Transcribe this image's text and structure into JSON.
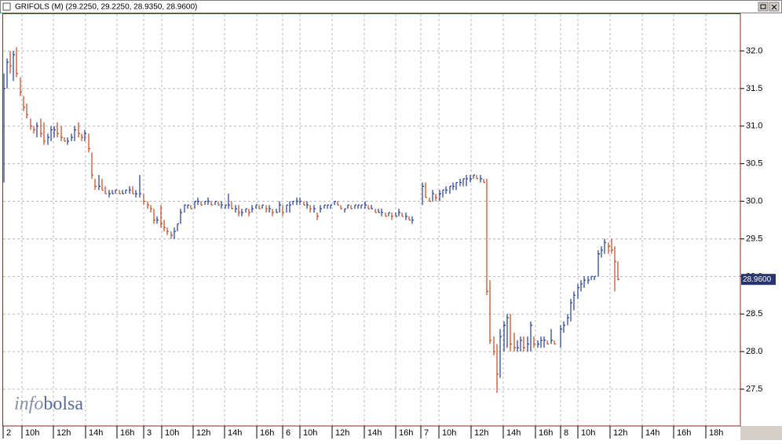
{
  "chart_data": {
    "type": "hlc",
    "title": "GRIFOLS (M) (29.2250, 29.2250, 28.9350, 28.9600)",
    "watermark": [
      "info",
      "bolsa"
    ],
    "last_label": {
      "value": 28.96,
      "label": "28.9600"
    },
    "up_color": "#1f3a8a",
    "down_color": "#c0461e",
    "grid": true,
    "ylim": [
      27.01,
      32.49
    ],
    "yticks": [
      27.5,
      {
        "value": 28.0,
        "label": "28.0"
      },
      28.5,
      {
        "value": 29.0,
        "label": "29.0"
      },
      29.5,
      {
        "value": 30.0,
        "label": "30.0"
      },
      30.5,
      {
        "value": 31.0,
        "label": "31.0"
      },
      31.5,
      {
        "value": 32.0,
        "label": "32.0"
      }
    ],
    "xlim": [
      0,
      46.95
    ],
    "xticks": [
      {
        "value": 0,
        "label": "2"
      },
      {
        "value": 1.2,
        "label": "10h"
      },
      {
        "value": 3.2,
        "label": "12h"
      },
      {
        "value": 5.25,
        "label": "14h"
      },
      {
        "value": 7.25,
        "label": "16h"
      },
      {
        "value": 8.95,
        "label": "3"
      },
      {
        "value": 10.1,
        "label": "10h"
      },
      {
        "value": 12.1,
        "label": "12h"
      },
      {
        "value": 14.1,
        "label": "14h"
      },
      {
        "value": 16.15,
        "label": "16h"
      },
      {
        "value": 17.8,
        "label": "6"
      },
      {
        "value": 18.9,
        "label": "10h"
      },
      {
        "value": 20.95,
        "label": "12h"
      },
      {
        "value": 23.0,
        "label": "14h"
      },
      {
        "value": 25.0,
        "label": "16h"
      },
      {
        "value": 26.6,
        "label": "7"
      },
      {
        "value": 27.75,
        "label": "10h"
      },
      {
        "value": 29.8,
        "label": "12h"
      },
      {
        "value": 31.85,
        "label": "14h"
      },
      {
        "value": 33.9,
        "label": "16h"
      },
      {
        "value": 35.5,
        "label": "8"
      },
      {
        "value": 36.6,
        "label": "10h"
      },
      {
        "value": 38.65,
        "label": "12h"
      },
      {
        "value": 40.7,
        "label": "14h"
      },
      {
        "value": 42.7,
        "label": "16h"
      },
      {
        "value": 44.75,
        "label": "18h"
      }
    ],
    "x": [
      0.05,
      0.25,
      0.45,
      0.65,
      0.85,
      1.1,
      1.3,
      1.5,
      1.75,
      1.95,
      2.15,
      2.4,
      2.6,
      2.85,
      3.05,
      3.25,
      3.45,
      3.7,
      3.9,
      4.1,
      4.35,
      4.55,
      4.8,
      5.0,
      5.2,
      5.45,
      5.65,
      5.85,
      6.1,
      6.3,
      6.5,
      6.75,
      6.95,
      7.15,
      7.4,
      7.6,
      7.8,
      8.05,
      8.25,
      8.45,
      8.7,
      8.95,
      9.2,
      9.4,
      9.6,
      9.8,
      10.05,
      10.25,
      10.45,
      10.7,
      10.9,
      11.1,
      11.3,
      11.55,
      11.75,
      11.95,
      12.2,
      12.4,
      12.6,
      12.85,
      13.05,
      13.25,
      13.5,
      13.7,
      13.9,
      14.15,
      14.35,
      14.55,
      14.8,
      15.0,
      15.2,
      15.45,
      15.65,
      15.85,
      16.1,
      16.3,
      16.5,
      16.75,
      16.95,
      17.15,
      17.4,
      17.6,
      17.8,
      18.05,
      18.25,
      18.45,
      18.7,
      18.9,
      19.15,
      19.35,
      19.55,
      19.8,
      20.0,
      20.2,
      20.45,
      20.65,
      20.85,
      21.1,
      21.3,
      21.5,
      21.75,
      21.95,
      22.15,
      22.4,
      22.6,
      22.8,
      23.05,
      23.25,
      23.45,
      23.7,
      23.9,
      24.1,
      24.35,
      24.55,
      24.75,
      25.0,
      25.2,
      25.4,
      25.65,
      25.85,
      26.05,
      26.7,
      26.9,
      27.15,
      27.35,
      27.55,
      27.8,
      28.0,
      28.2,
      28.45,
      28.65,
      28.85,
      29.1,
      29.3,
      29.5,
      29.75,
      29.95,
      30.15,
      30.4,
      30.6,
      30.8,
      31.0,
      31.25,
      31.45,
      31.65,
      31.9,
      32.1,
      32.3,
      32.55,
      32.75,
      32.95,
      33.15,
      33.4,
      33.6,
      33.8,
      34.05,
      34.25,
      34.45,
      34.65,
      34.9,
      35.1,
      35.5,
      35.7,
      35.95,
      36.15,
      36.35,
      36.6,
      36.8,
      37.0,
      37.25,
      37.45,
      37.65,
      37.9,
      38.1,
      38.3,
      38.55,
      38.75,
      38.95,
      39.15
    ],
    "high": [
      31.7,
      31.9,
      32.0,
      32.0,
      32.05,
      31.65,
      31.4,
      31.3,
      31.1,
      31.0,
      31.05,
      31.1,
      31.05,
      30.9,
      31.0,
      31.0,
      31.05,
      31.0,
      30.85,
      30.85,
      30.9,
      31.0,
      31.05,
      30.9,
      30.95,
      30.9,
      30.65,
      30.3,
      30.35,
      30.3,
      30.2,
      30.15,
      30.15,
      30.15,
      30.15,
      30.15,
      30.15,
      30.2,
      30.2,
      30.15,
      30.35,
      30.1,
      30.0,
      29.95,
      29.9,
      29.8,
      29.95,
      29.75,
      29.65,
      29.6,
      29.65,
      29.7,
      29.9,
      29.95,
      29.95,
      29.95,
      30.0,
      30.05,
      30.0,
      30.0,
      30.05,
      30.0,
      30.0,
      30.0,
      30.0,
      29.95,
      30.1,
      30.0,
      29.95,
      29.95,
      29.9,
      29.9,
      29.9,
      29.95,
      29.95,
      29.95,
      29.95,
      29.95,
      29.95,
      29.9,
      29.9,
      30.0,
      29.95,
      29.95,
      30.0,
      30.0,
      30.05,
      30.05,
      30.0,
      30.0,
      29.95,
      29.95,
      29.85,
      29.95,
      29.95,
      29.95,
      29.95,
      30.0,
      30.0,
      29.95,
      29.9,
      29.95,
      29.95,
      29.95,
      29.95,
      29.95,
      30.0,
      29.95,
      29.95,
      29.9,
      29.9,
      29.9,
      29.85,
      29.85,
      29.85,
      29.85,
      29.9,
      29.85,
      29.85,
      29.8,
      29.8,
      30.25,
      30.25,
      30.05,
      30.15,
      30.1,
      30.15,
      30.15,
      30.2,
      30.2,
      30.25,
      30.25,
      30.3,
      30.3,
      30.35,
      30.35,
      30.35,
      30.35,
      30.35,
      30.3,
      30.3,
      28.95,
      28.2,
      28.1,
      28.3,
      28.4,
      28.5,
      28.5,
      28.25,
      28.15,
      28.2,
      28.2,
      28.2,
      28.4,
      28.2,
      28.15,
      28.2,
      28.2,
      28.15,
      28.3,
      28.15,
      28.35,
      28.4,
      28.5,
      28.7,
      28.8,
      28.9,
      28.95,
      29.0,
      29.0,
      29.0,
      29.0,
      29.35,
      29.4,
      29.5,
      29.45,
      29.5,
      29.4,
      29.2
    ],
    "low": [
      30.25,
      31.5,
      31.7,
      31.6,
      31.65,
      31.4,
      31.2,
      31.1,
      30.95,
      30.9,
      30.85,
      30.85,
      30.75,
      30.75,
      30.8,
      30.85,
      30.85,
      30.8,
      30.8,
      30.75,
      30.8,
      30.8,
      30.85,
      30.8,
      30.8,
      30.65,
      30.3,
      30.15,
      30.15,
      30.15,
      30.1,
      30.05,
      30.1,
      30.1,
      30.1,
      30.1,
      30.1,
      30.1,
      30.1,
      30.05,
      30.05,
      29.95,
      29.9,
      29.85,
      29.7,
      29.7,
      29.65,
      29.6,
      29.55,
      29.5,
      29.5,
      29.6,
      29.7,
      29.85,
      29.9,
      29.9,
      29.9,
      29.95,
      29.95,
      29.95,
      29.95,
      29.95,
      29.95,
      29.95,
      29.9,
      29.9,
      29.9,
      29.9,
      29.85,
      29.8,
      29.8,
      29.85,
      29.8,
      29.85,
      29.9,
      29.9,
      29.9,
      29.85,
      29.85,
      29.8,
      29.85,
      29.85,
      29.8,
      29.85,
      29.85,
      29.95,
      29.95,
      29.95,
      29.95,
      29.9,
      29.85,
      29.85,
      29.75,
      29.85,
      29.9,
      29.9,
      29.9,
      29.95,
      29.95,
      29.9,
      29.85,
      29.9,
      29.9,
      29.9,
      29.9,
      29.9,
      29.9,
      29.9,
      29.9,
      29.85,
      29.85,
      29.8,
      29.8,
      29.8,
      29.75,
      29.8,
      29.8,
      29.8,
      29.75,
      29.75,
      29.7,
      29.95,
      30.05,
      30.0,
      30.0,
      30.0,
      30.0,
      30.05,
      30.1,
      30.1,
      30.15,
      30.15,
      30.2,
      30.2,
      30.2,
      30.25,
      30.3,
      30.3,
      30.25,
      30.25,
      28.75,
      28.1,
      27.95,
      27.45,
      27.65,
      28.0,
      28.05,
      28.0,
      28.0,
      28.0,
      28.0,
      28.0,
      28.0,
      28.0,
      28.05,
      28.05,
      28.05,
      28.05,
      28.1,
      28.1,
      28.1,
      28.05,
      28.25,
      28.35,
      28.4,
      28.55,
      28.7,
      28.8,
      28.85,
      28.9,
      28.95,
      28.95,
      29.0,
      29.25,
      29.3,
      29.3,
      29.3,
      28.8,
      28.95
    ],
    "close": [
      31.5,
      31.85,
      31.8,
      31.95,
      31.7,
      31.45,
      31.25,
      31.15,
      31.0,
      30.95,
      31.0,
      30.9,
      30.8,
      30.85,
      30.95,
      30.95,
      30.9,
      30.85,
      30.8,
      30.8,
      30.85,
      30.95,
      30.9,
      30.85,
      30.9,
      30.7,
      30.35,
      30.2,
      30.2,
      30.15,
      30.1,
      30.1,
      30.1,
      30.15,
      30.1,
      30.1,
      30.15,
      30.15,
      30.1,
      30.1,
      30.1,
      30.0,
      29.95,
      29.9,
      29.75,
      29.75,
      29.7,
      29.65,
      29.6,
      29.55,
      29.6,
      29.7,
      29.85,
      29.95,
      29.95,
      29.9,
      30.0,
      30.0,
      29.95,
      30.0,
      30.0,
      29.95,
      30.0,
      29.95,
      29.95,
      29.95,
      29.95,
      29.9,
      29.9,
      29.85,
      29.85,
      29.9,
      29.85,
      29.9,
      29.95,
      29.9,
      29.95,
      29.9,
      29.9,
      29.85,
      29.85,
      29.95,
      29.85,
      29.95,
      29.95,
      30.0,
      30.0,
      30.0,
      29.95,
      29.95,
      29.9,
      29.9,
      29.8,
      29.9,
      29.95,
      29.95,
      29.95,
      30.0,
      29.95,
      29.9,
      29.9,
      29.95,
      29.9,
      29.95,
      29.95,
      29.95,
      29.95,
      29.9,
      29.9,
      29.85,
      29.85,
      29.85,
      29.8,
      29.85,
      29.8,
      29.8,
      29.85,
      29.8,
      29.8,
      29.75,
      29.75,
      30.2,
      30.05,
      30.0,
      30.1,
      30.05,
      30.1,
      30.15,
      30.15,
      30.2,
      30.2,
      30.25,
      30.25,
      30.3,
      30.3,
      30.3,
      30.35,
      30.3,
      30.3,
      30.25,
      28.8,
      28.15,
      28.0,
      27.7,
      28.2,
      28.35,
      28.45,
      28.1,
      28.05,
      28.05,
      28.15,
      28.05,
      28.1,
      28.35,
      28.1,
      28.1,
      28.15,
      28.15,
      28.1,
      28.15,
      28.1,
      28.3,
      28.35,
      28.45,
      28.65,
      28.75,
      28.85,
      28.9,
      28.95,
      28.95,
      29.0,
      29.0,
      29.3,
      29.35,
      29.45,
      29.4,
      29.35,
      29.2,
      28.96
    ]
  }
}
